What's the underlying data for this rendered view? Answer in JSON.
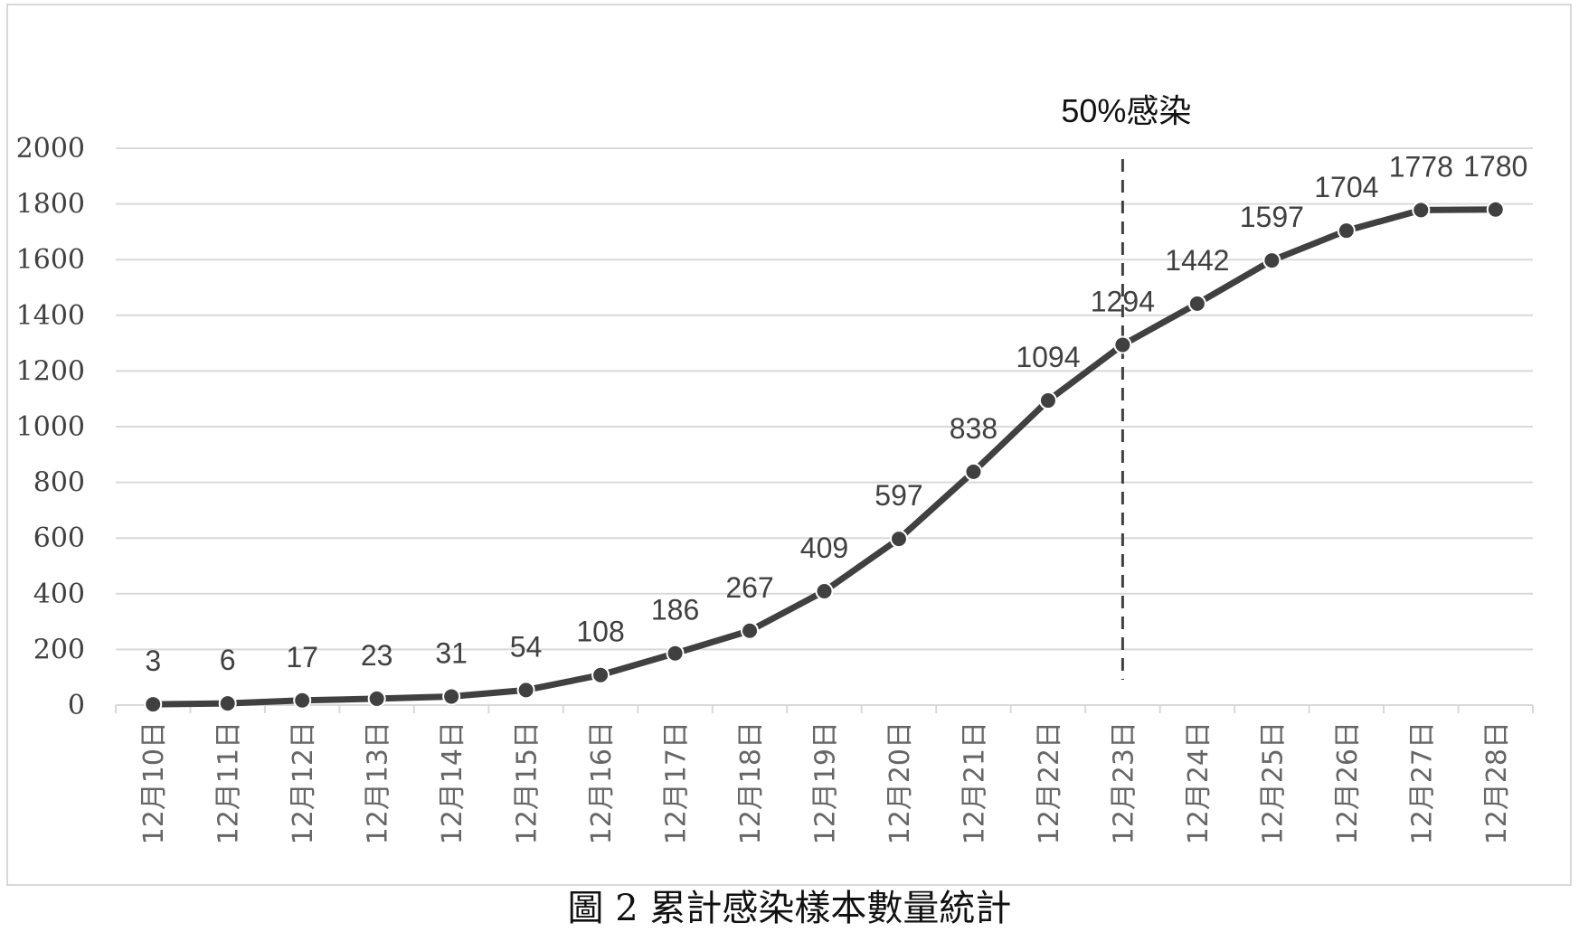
{
  "chart_data": {
    "type": "line",
    "categories": [
      "12月10日",
      "12月11日",
      "12月12日",
      "12月13日",
      "12月14日",
      "12月15日",
      "12月16日",
      "12月17日",
      "12月18日",
      "12月19日",
      "12月20日",
      "12月21日",
      "12月22日",
      "12月23日",
      "12月24日",
      "12月25日",
      "12月26日",
      "12月27日",
      "12月28日"
    ],
    "values": [
      3,
      6,
      17,
      23,
      31,
      54,
      108,
      186,
      267,
      409,
      597,
      838,
      1094,
      1294,
      1442,
      1597,
      1704,
      1778,
      1780
    ],
    "y_ticks": [
      "0",
      "200",
      "400",
      "600",
      "800",
      "1000",
      "1200",
      "1400",
      "1600",
      "1800",
      "2000"
    ],
    "ylim": [
      0,
      2000
    ],
    "grid": true,
    "legend": "none",
    "line_color": "#404040",
    "grid_color": "#d9d9d9",
    "annotation": {
      "label": "50%感染",
      "category": "12月23日"
    }
  },
  "caption": "圖 2 累計感染樣本數量統計"
}
